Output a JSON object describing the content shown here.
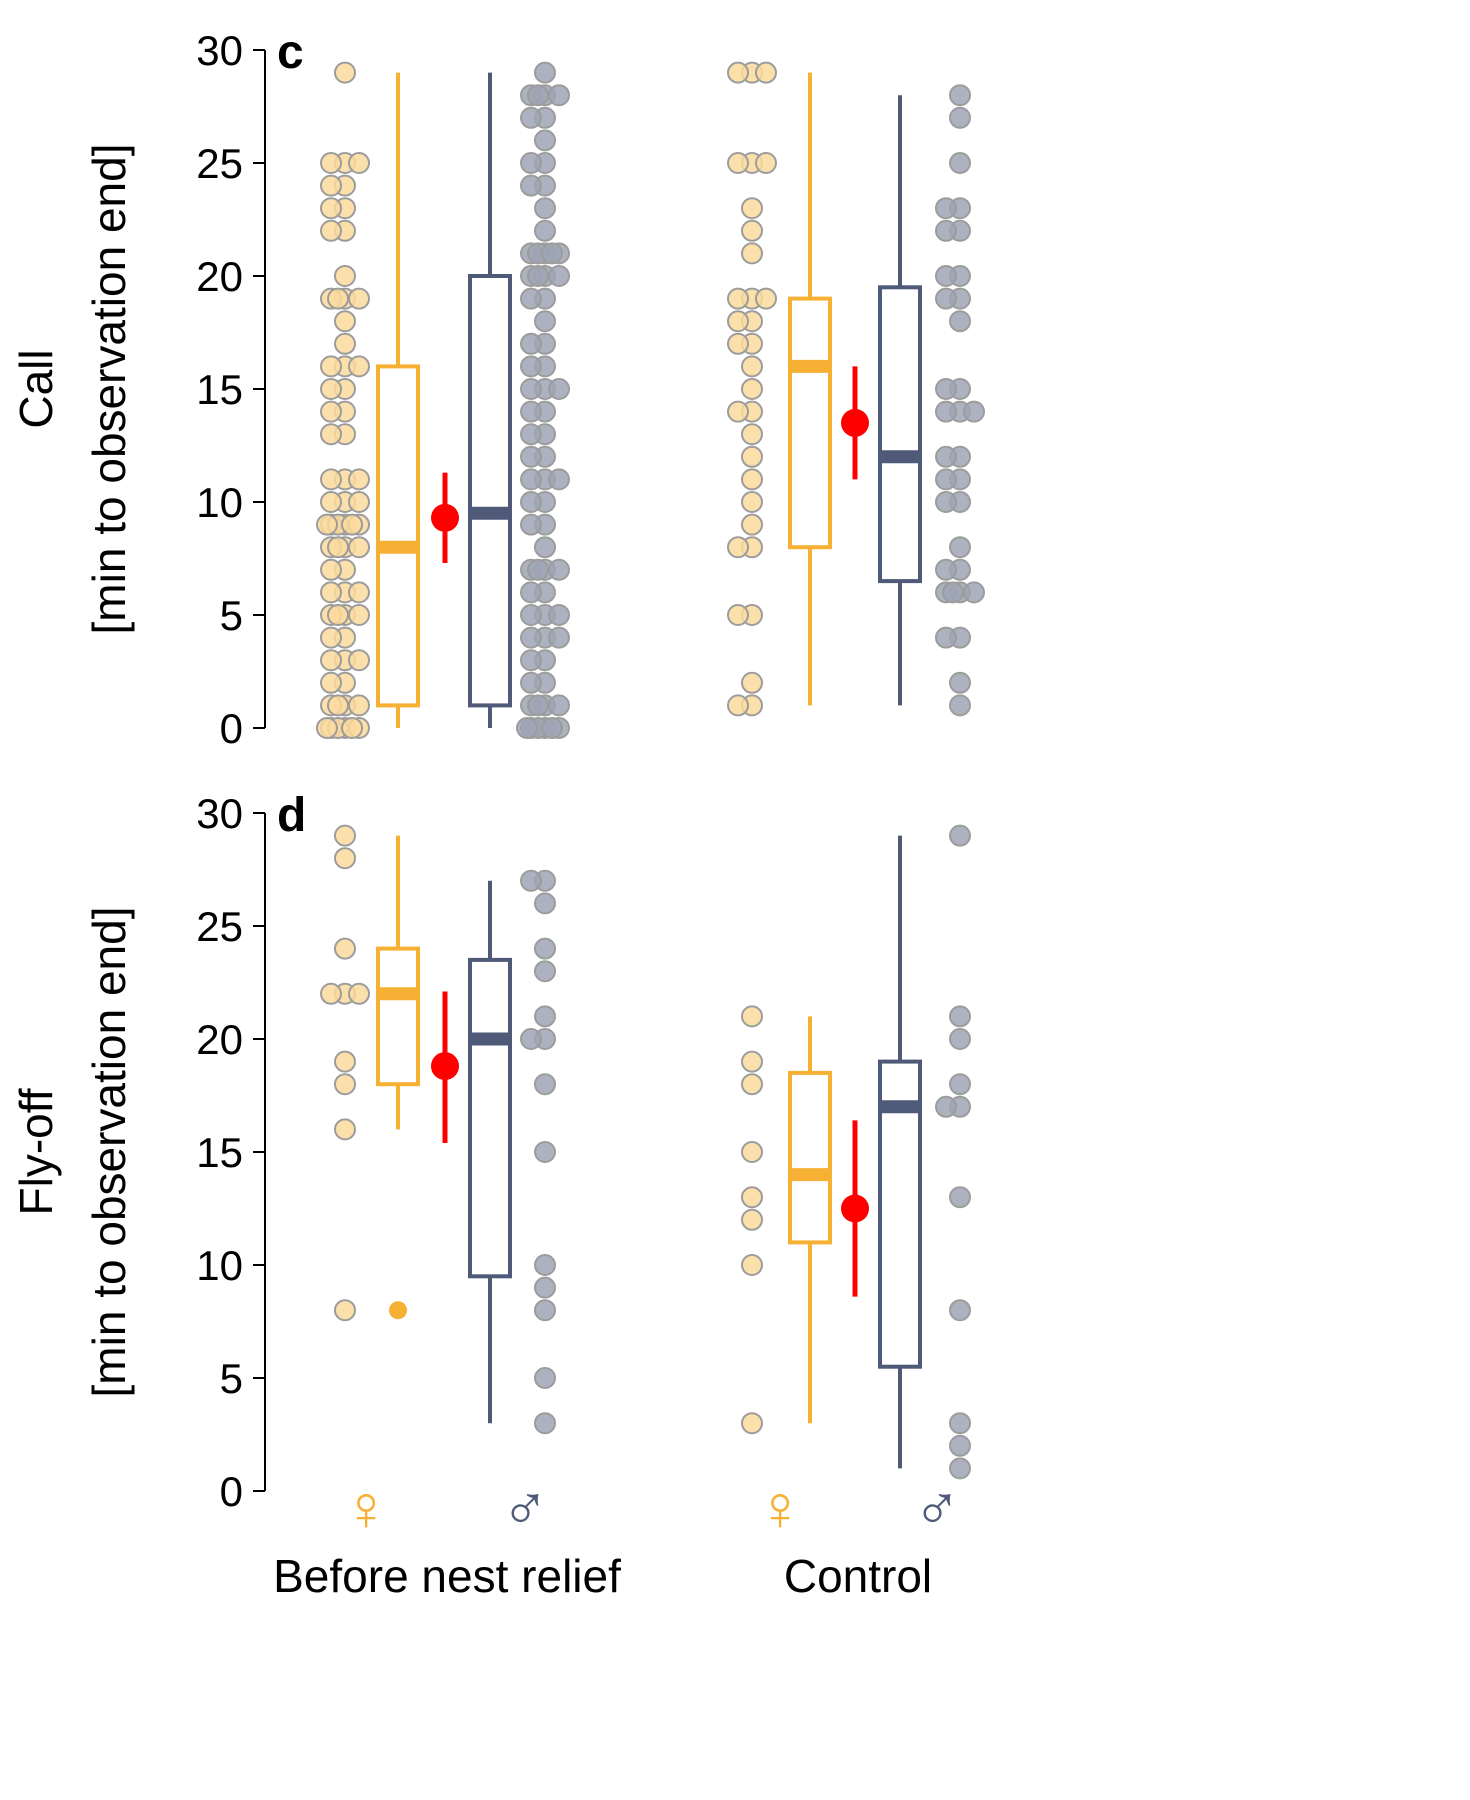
{
  "colors": {
    "female": "#F6B033",
    "female_point": "#FBDA9E",
    "male": "#4E5A78",
    "male_point": "#9EA5B4",
    "point_stroke": "#9C9C9C",
    "estimate": "#FF0000",
    "axis": "#000000"
  },
  "x_groups": [
    {
      "label": "Before nest relief",
      "female_symbol": "♀",
      "male_symbol": "♂"
    },
    {
      "label": "Control",
      "female_symbol": "♀",
      "male_symbol": "♂"
    }
  ],
  "chart_data": [
    {
      "type": "box",
      "panel_label": "c",
      "title": "",
      "ylabel_line1": "Call",
      "ylabel_line2": "[min to observation end]",
      "ylim": [
        0,
        30
      ],
      "yticks": [
        0,
        5,
        10,
        15,
        20,
        25,
        30
      ],
      "groups": [
        {
          "name": "Before nest relief",
          "female": {
            "box": {
              "whisker_low": 0,
              "q1": 1,
              "median": 8,
              "q3": 16,
              "whisker_high": 29
            },
            "outliers": [],
            "points": [
              29,
              25,
              25,
              25,
              24,
              24,
              23,
              23,
              22,
              22,
              20,
              19,
              19,
              19,
              19,
              18,
              17,
              16,
              16,
              16,
              15,
              15,
              14,
              14,
              13,
              13,
              11,
              11,
              11,
              10,
              10,
              10,
              9,
              9,
              9,
              9,
              9,
              9,
              8,
              8,
              8,
              8,
              7,
              7,
              6,
              6,
              6,
              5,
              5,
              5,
              5,
              4,
              4,
              3,
              3,
              3,
              2,
              2,
              1,
              1,
              1,
              1,
              0,
              0,
              0,
              0,
              0,
              0
            ]
          },
          "male": {
            "box": {
              "whisker_low": 0,
              "q1": 1,
              "median": 9.5,
              "q3": 20,
              "whisker_high": 29
            },
            "outliers": [],
            "points": [
              29,
              28,
              28,
              28,
              28,
              27,
              27,
              26,
              25,
              25,
              24,
              24,
              23,
              22,
              21,
              21,
              21,
              21,
              21,
              20,
              20,
              20,
              20,
              19,
              19,
              18,
              17,
              17,
              16,
              16,
              15,
              15,
              15,
              14,
              14,
              13,
              13,
              12,
              12,
              11,
              11,
              11,
              10,
              10,
              9,
              9,
              8,
              7,
              7,
              7,
              7,
              6,
              6,
              5,
              5,
              5,
              4,
              4,
              4,
              3,
              3,
              2,
              2,
              1,
              1,
              1,
              1,
              0,
              0,
              0,
              0,
              0,
              0
            ]
          },
          "estimate": {
            "value": 9.3,
            "ci_low": 7.3,
            "ci_high": 11.3
          }
        },
        {
          "name": "Control",
          "female": {
            "box": {
              "whisker_low": 1,
              "q1": 8,
              "median": 16,
              "q3": 19,
              "whisker_high": 29
            },
            "outliers": [],
            "points": [
              29,
              29,
              29,
              25,
              25,
              25,
              23,
              22,
              21,
              19,
              19,
              19,
              18,
              18,
              17,
              17,
              16,
              15,
              14,
              14,
              13,
              12,
              11,
              10,
              9,
              8,
              8,
              5,
              5,
              2,
              1,
              1
            ]
          },
          "male": {
            "box": {
              "whisker_low": 1,
              "q1": 6.5,
              "median": 12,
              "q3": 19.5,
              "whisker_high": 28
            },
            "outliers": [],
            "points": [
              28,
              27,
              25,
              23,
              23,
              22,
              22,
              20,
              20,
              19,
              19,
              18,
              15,
              15,
              14,
              14,
              14,
              12,
              12,
              11,
              11,
              10,
              10,
              8,
              7,
              7,
              6,
              6,
              6,
              6,
              4,
              4,
              2,
              1
            ]
          },
          "estimate": {
            "value": 13.5,
            "ci_low": 11,
            "ci_high": 16
          }
        }
      ]
    },
    {
      "type": "box",
      "panel_label": "d",
      "title": "",
      "ylabel_line1": "Fly-off",
      "ylabel_line2": "[min to observation end]",
      "ylim": [
        0,
        30
      ],
      "yticks": [
        0,
        5,
        10,
        15,
        20,
        25,
        30
      ],
      "groups": [
        {
          "name": "Before nest relief",
          "female": {
            "box": {
              "whisker_low": 16,
              "q1": 18,
              "median": 22,
              "q3": 24,
              "whisker_high": 29
            },
            "outliers": [
              8
            ],
            "points": [
              29,
              28,
              24,
              22,
              22,
              22,
              19,
              18,
              16,
              8
            ]
          },
          "male": {
            "box": {
              "whisker_low": 3,
              "q1": 9.5,
              "median": 20,
              "q3": 23.5,
              "whisker_high": 27
            },
            "outliers": [],
            "points": [
              27,
              27,
              26,
              24,
              23,
              21,
              20,
              20,
              18,
              15,
              10,
              9,
              8,
              5,
              3
            ]
          },
          "estimate": {
            "value": 18.8,
            "ci_low": 15.4,
            "ci_high": 22.1
          }
        },
        {
          "name": "Control",
          "female": {
            "box": {
              "whisker_low": 3,
              "q1": 11,
              "median": 14,
              "q3": 18.5,
              "whisker_high": 21
            },
            "outliers": [],
            "points": [
              21,
              19,
              18,
              15,
              13,
              12,
              10,
              3
            ]
          },
          "male": {
            "box": {
              "whisker_low": 1,
              "q1": 5.5,
              "median": 17,
              "q3": 19,
              "whisker_high": 29
            },
            "outliers": [],
            "points": [
              29,
              21,
              20,
              18,
              17,
              17,
              13,
              8,
              3,
              2,
              1
            ]
          },
          "estimate": {
            "value": 12.5,
            "ci_low": 8.6,
            "ci_high": 16.4
          }
        }
      ]
    }
  ]
}
